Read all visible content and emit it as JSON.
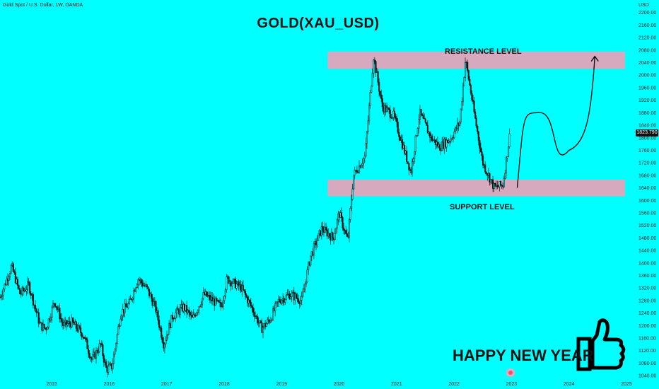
{
  "header": {
    "symbol_line": "Gold Spot / U.S. Dollar, 1W, OANDA",
    "currency": "USD"
  },
  "chart_data": {
    "type": "candlestick",
    "title": "GOLD(XAU_USD)",
    "ylim": [
      1020,
      2240
    ],
    "y_ticks": [
      1040,
      1080,
      1120,
      1160,
      1200,
      1240,
      1280,
      1320,
      1360,
      1400,
      1440,
      1480,
      1520,
      1560,
      1600,
      1640,
      1680,
      1720,
      1760,
      1800,
      1840,
      1880,
      1920,
      1960,
      2000,
      2040,
      2080,
      2120,
      2160,
      2200
    ],
    "x_ticks": [
      "2015",
      "2016",
      "2017",
      "2018",
      "2019",
      "2020",
      "2021",
      "2022",
      "2023",
      "2024",
      "2025"
    ],
    "xlim": [
      2014.1,
      2025.05
    ],
    "current_price": "1823.790",
    "price_path": [
      [
        2014.1,
        1290
      ],
      [
        2014.2,
        1340
      ],
      [
        2014.3,
        1390
      ],
      [
        2014.45,
        1300
      ],
      [
        2014.6,
        1330
      ],
      [
        2014.8,
        1200
      ],
      [
        2014.9,
        1190
      ],
      [
        2015.05,
        1280
      ],
      [
        2015.2,
        1200
      ],
      [
        2015.35,
        1210
      ],
      [
        2015.55,
        1170
      ],
      [
        2015.7,
        1090
      ],
      [
        2015.85,
        1140
      ],
      [
        2015.95,
        1060
      ],
      [
        2016.05,
        1070
      ],
      [
        2016.2,
        1240
      ],
      [
        2016.35,
        1270
      ],
      [
        2016.5,
        1350
      ],
      [
        2016.65,
        1320
      ],
      [
        2016.8,
        1260
      ],
      [
        2016.95,
        1140
      ],
      [
        2017.1,
        1230
      ],
      [
        2017.3,
        1260
      ],
      [
        2017.45,
        1220
      ],
      [
        2017.65,
        1300
      ],
      [
        2017.8,
        1280
      ],
      [
        2017.95,
        1260
      ],
      [
        2018.05,
        1350
      ],
      [
        2018.3,
        1320
      ],
      [
        2018.5,
        1250
      ],
      [
        2018.65,
        1190
      ],
      [
        2018.8,
        1220
      ],
      [
        2018.95,
        1280
      ],
      [
        2019.15,
        1300
      ],
      [
        2019.35,
        1280
      ],
      [
        2019.5,
        1420
      ],
      [
        2019.7,
        1510
      ],
      [
        2019.9,
        1480
      ],
      [
        2020.0,
        1560
      ],
      [
        2020.15,
        1470
      ],
      [
        2020.25,
        1680
      ],
      [
        2020.45,
        1740
      ],
      [
        2020.6,
        2060
      ],
      [
        2020.75,
        1900
      ],
      [
        2020.95,
        1870
      ],
      [
        2021.1,
        1780
      ],
      [
        2021.25,
        1690
      ],
      [
        2021.4,
        1880
      ],
      [
        2021.6,
        1800
      ],
      [
        2021.75,
        1770
      ],
      [
        2021.95,
        1800
      ],
      [
        2022.1,
        1850
      ],
      [
        2022.2,
        2050
      ],
      [
        2022.35,
        1880
      ],
      [
        2022.5,
        1720
      ],
      [
        2022.7,
        1640
      ],
      [
        2022.85,
        1650
      ],
      [
        2022.98,
        1823.79
      ]
    ],
    "zones": [
      {
        "name": "resistance",
        "label": "RESISTANCE LEVEL",
        "low": 2020,
        "high": 2075,
        "x_start": 2019.8
      },
      {
        "name": "support",
        "label": "SUPPORT LEVEL",
        "low": 1613,
        "high": 1666,
        "x_start": 2019.8
      }
    ],
    "projection": [
      [
        2023.1,
        1640
      ],
      [
        2023.5,
        1880
      ],
      [
        2024.0,
        1760
      ],
      [
        2024.45,
        2060
      ]
    ],
    "colors": {
      "background": "#00ffff",
      "candle": "#111111",
      "zone": "#d6a9be"
    }
  },
  "annotations": {
    "greeting": "HAPPY NEW YEAR"
  },
  "icons": {
    "greeting_icon": "thumbs-up-icon",
    "tv_logo": "tradingview-logo-icon"
  }
}
